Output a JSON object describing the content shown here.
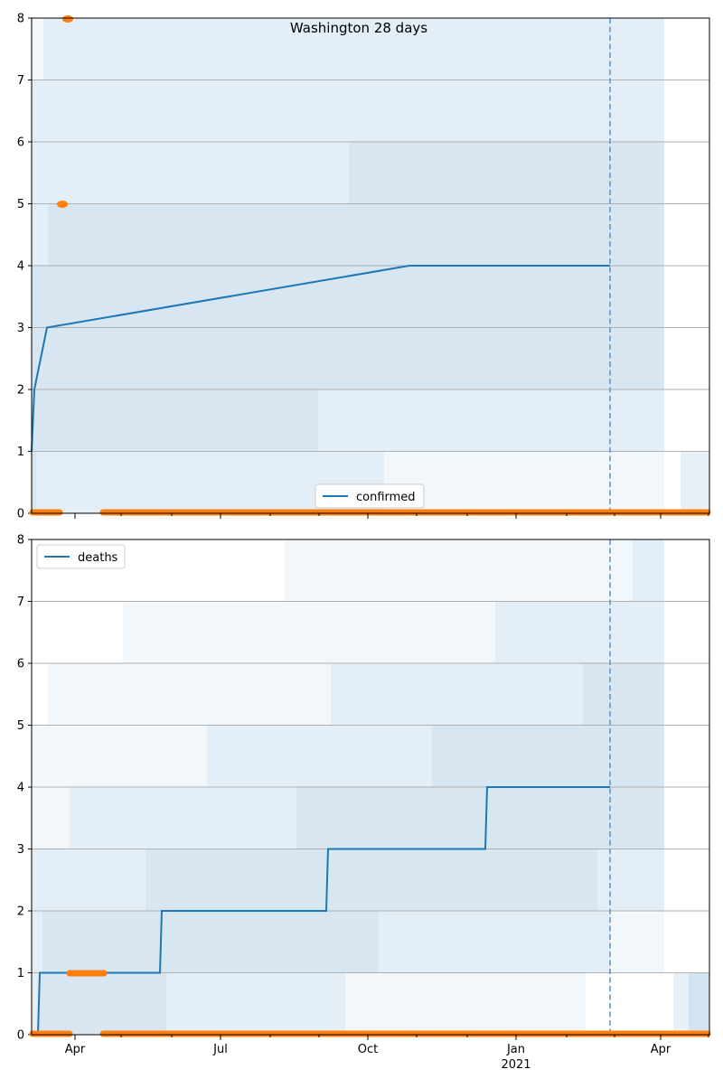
{
  "chart_data": [
    {
      "type": "line",
      "title": "Washington 28 days",
      "legend": {
        "label": "confirmed",
        "placement": "lower-center"
      },
      "xlabel": "",
      "ylabel": "",
      "ylim": [
        0,
        8
      ],
      "yticks": [
        0,
        1,
        2,
        3,
        4,
        5,
        6,
        7,
        8
      ],
      "grid": "y",
      "x_tick_labels": [
        "Apr",
        "Jul",
        "Oct",
        "Jan",
        "Apr"
      ],
      "x_tick_sublabel": "2021",
      "series": [
        {
          "name": "confirmed",
          "color": "#1f77b4",
          "points": [
            [
              0,
              1
            ],
            [
              3,
              2
            ],
            [
              17,
              3
            ],
            [
              418,
              4
            ],
            [
              640,
              4
            ]
          ]
        }
      ],
      "vertical_marker": {
        "x": 640,
        "style": "dashed",
        "color": "#5b9bd5"
      },
      "uncertainty_bands_color": "#1f77b4",
      "orange_markers": {
        "color": "#ff7f0e"
      }
    },
    {
      "type": "line",
      "title": "",
      "legend": {
        "label": "deaths",
        "placement": "upper-left"
      },
      "xlabel": "",
      "ylabel": "",
      "ylim": [
        0,
        8
      ],
      "yticks": [
        0,
        1,
        2,
        3,
        4,
        5,
        6,
        7,
        8
      ],
      "grid": "y",
      "x_tick_labels": [
        "Apr",
        "Jul",
        "Oct",
        "Jan",
        "Apr"
      ],
      "x_tick_sublabel": "2021",
      "series": [
        {
          "name": "deaths",
          "color": "#1f77b4",
          "points": [
            [
              0,
              0
            ],
            [
              7,
              0
            ],
            [
              9,
              1
            ],
            [
              142,
              1
            ],
            [
              144,
              2
            ],
            [
              326,
              2
            ],
            [
              328,
              3
            ],
            [
              502,
              3
            ],
            [
              504,
              4
            ],
            [
              640,
              4
            ]
          ]
        }
      ],
      "vertical_marker": {
        "x": 640,
        "style": "dashed",
        "color": "#5b9bd5"
      },
      "uncertainty_bands_color": "#1f77b4",
      "orange_markers": {
        "color": "#ff7f0e"
      }
    }
  ]
}
